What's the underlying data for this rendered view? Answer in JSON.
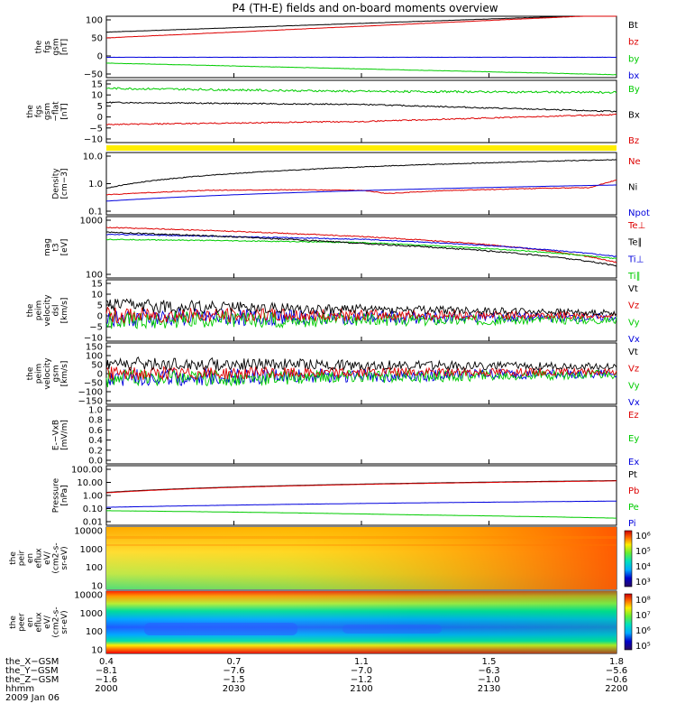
{
  "title": "P4 (TH-E) fields and on-board moments overview",
  "colors": {
    "black": "#000000",
    "red": "#dd0000",
    "green": "#00cc00",
    "blue": "#0000dd",
    "yellow": "#ffee00"
  },
  "chart_data": [
    {
      "type": "line",
      "ylabel": [
        "the",
        "fgs",
        "gsm",
        "[nT]"
      ],
      "yticks": [
        "100",
        "50",
        "0",
        "−50"
      ],
      "ylim": [
        -85,
        105
      ],
      "legend": [
        {
          "name": "Bt",
          "color": "#000000"
        },
        {
          "name": "bz",
          "color": "#dd0000"
        },
        {
          "name": "by",
          "color": "#00cc00"
        },
        {
          "name": "bx",
          "color": "#0000dd"
        }
      ],
      "series": [
        {
          "name": "Bt",
          "color": "#000000",
          "x": [
            0,
            1
          ],
          "y": [
            56,
            110
          ],
          "noise": 0.4
        },
        {
          "name": "bz",
          "color": "#dd0000",
          "x": [
            0,
            1
          ],
          "y": [
            38,
            110
          ],
          "noise": 0.4
        },
        {
          "name": "bx",
          "color": "#0000dd",
          "x": [
            0,
            1
          ],
          "y": [
            -22,
            -22
          ],
          "noise": 0.3
        },
        {
          "name": "by",
          "color": "#00cc00",
          "x": [
            0,
            1
          ],
          "y": [
            -40,
            -76
          ],
          "noise": 0.5
        }
      ]
    },
    {
      "type": "line",
      "ylabel": [
        "the",
        "fgs",
        "gsm",
        "−flat",
        "[nT]"
      ],
      "yticks": [
        "15",
        "10",
        "5",
        "0",
        "−5",
        "−10"
      ],
      "ylim": [
        -15,
        16
      ],
      "legend": [
        {
          "name": "By",
          "color": "#00cc00"
        },
        {
          "name": "Bx",
          "color": "#000000"
        },
        {
          "name": "Bz",
          "color": "#dd0000"
        }
      ],
      "series": [
        {
          "name": "By",
          "color": "#00cc00",
          "x": [
            0,
            0.5,
            1
          ],
          "y": [
            12,
            10.5,
            10
          ],
          "noise": 0.5
        },
        {
          "name": "Bx",
          "color": "#000000",
          "x": [
            0,
            0.5,
            1
          ],
          "y": [
            5,
            4,
            0.5
          ],
          "noise": 0.3
        },
        {
          "name": "Bz",
          "color": "#dd0000",
          "x": [
            0,
            0.5,
            1
          ],
          "y": [
            -6,
            -4.5,
            -1
          ],
          "noise": 0.3
        }
      ]
    },
    {
      "type": "line",
      "ylabel": [
        "Density",
        "[cm−3]"
      ],
      "yticks": [
        "10.0",
        "1.0",
        "0.1"
      ],
      "ylim": [
        0.1,
        15
      ],
      "log": true,
      "legend": [
        {
          "name": "Ne",
          "color": "#dd0000"
        },
        {
          "name": "Ni",
          "color": "#000000"
        },
        {
          "name": "Npot",
          "color": "#0000dd"
        }
      ],
      "series": [
        {
          "name": "Ni",
          "color": "#000000",
          "x": [
            0,
            1
          ],
          "y": [
            0.85,
            8.5
          ],
          "noise": 0.03
        },
        {
          "name": "Ne",
          "color": "#dd0000",
          "x": [
            0,
            0.2,
            0.35,
            0.5,
            0.55,
            0.65,
            0.8,
            0.95,
            1
          ],
          "y": [
            0.5,
            0.72,
            0.75,
            0.72,
            0.55,
            0.68,
            0.8,
            0.9,
            1.6
          ],
          "noise": 0.03
        },
        {
          "name": "Npot",
          "color": "#0000dd",
          "x": [
            0,
            1
          ],
          "y": [
            0.3,
            1.1
          ],
          "noise": 0.0
        }
      ]
    },
    {
      "type": "line",
      "ylabel": [
        "mag",
        "t3",
        "[eV]"
      ],
      "yticks": [
        "1000",
        "100"
      ],
      "ylim": [
        100,
        4500
      ],
      "log": true,
      "legend": [
        {
          "name": "Te⊥",
          "color": "#dd0000"
        },
        {
          "name": "Te∥",
          "color": "#000000"
        },
        {
          "name": "Ti⊥",
          "color": "#0000dd"
        },
        {
          "name": "Ti∥",
          "color": "#00cc00"
        }
      ],
      "series": [
        {
          "name": "Te⊥",
          "color": "#dd0000",
          "x": [
            0,
            0.5,
            1
          ],
          "y": [
            2300,
            1300,
            260
          ],
          "noise": 0.03
        },
        {
          "name": "Ti⊥",
          "color": "#0000dd",
          "x": [
            0,
            0.5,
            1
          ],
          "y": [
            1500,
            1100,
            380
          ],
          "noise": 0.03
        },
        {
          "name": "Ti∥",
          "color": "#00cc00",
          "x": [
            0,
            0.5,
            1
          ],
          "y": [
            1100,
            900,
            330
          ],
          "noise": 0.03
        },
        {
          "name": "Te∥",
          "color": "#000000",
          "x": [
            0,
            0.5,
            1
          ],
          "y": [
            1700,
            850,
            210
          ],
          "noise": 0.04
        }
      ]
    },
    {
      "type": "line",
      "ylabel": [
        "the",
        "peim",
        "velocity",
        "dsl",
        "[km/s]"
      ],
      "yticks": [
        "15",
        "10",
        "5",
        "0",
        "−5",
        "−10"
      ],
      "ylim": [
        -10,
        16
      ],
      "legend": [
        {
          "name": "Vt",
          "color": "#000000"
        },
        {
          "name": "Vz",
          "color": "#dd0000"
        },
        {
          "name": "Vy",
          "color": "#00cc00"
        },
        {
          "name": "Vx",
          "color": "#0000dd"
        }
      ],
      "series": [
        {
          "name": "Vx",
          "color": "#0000dd",
          "x": [
            0,
            1
          ],
          "y": [
            0,
            0
          ],
          "noise": 4.0,
          "decay": 0.6
        },
        {
          "name": "Vy",
          "color": "#00cc00",
          "x": [
            0,
            1
          ],
          "y": [
            -1,
            -1
          ],
          "noise": 4.0,
          "decay": 0.6
        },
        {
          "name": "Vz",
          "color": "#dd0000",
          "x": [
            0,
            1
          ],
          "y": [
            1,
            1
          ],
          "noise": 3.5,
          "decay": 0.6
        },
        {
          "name": "Vt",
          "color": "#000000",
          "x": [
            0,
            1
          ],
          "y": [
            5,
            2
          ],
          "noise": 3.0,
          "decay": 0.6
        }
      ]
    },
    {
      "type": "line",
      "ylabel": [
        "the",
        "peim",
        "velocity",
        "gsm",
        "[km/s]"
      ],
      "yticks": [
        "150",
        "100",
        "50",
        "0",
        "−50",
        "−100",
        "−150"
      ],
      "ylim": [
        -150,
        150
      ],
      "legend": [
        {
          "name": "Vt",
          "color": "#000000"
        },
        {
          "name": "Vz",
          "color": "#dd0000"
        },
        {
          "name": "Vy",
          "color": "#00cc00"
        },
        {
          "name": "Vx",
          "color": "#0000dd"
        }
      ],
      "series": [
        {
          "name": "Vx",
          "color": "#0000dd",
          "x": [
            0,
            1
          ],
          "y": [
            -20,
            0
          ],
          "noise": 45,
          "decay": 0.55
        },
        {
          "name": "Vy",
          "color": "#00cc00",
          "x": [
            0,
            1
          ],
          "y": [
            -25,
            -5
          ],
          "noise": 45,
          "decay": 0.55
        },
        {
          "name": "Vz",
          "color": "#dd0000",
          "x": [
            0,
            1
          ],
          "y": [
            0,
            10
          ],
          "noise": 35,
          "decay": 0.55
        },
        {
          "name": "Vt",
          "color": "#000000",
          "x": [
            0,
            1
          ],
          "y": [
            50,
            35
          ],
          "noise": 35,
          "decay": 0.55
        }
      ]
    },
    {
      "type": "line",
      "ylabel": [
        "E-−VxB",
        "[mV/m]"
      ],
      "yticks": [
        "1.0",
        "0.8",
        "0.6",
        "0.4",
        "0.2",
        "0.0"
      ],
      "ylim": [
        0,
        1
      ],
      "legend": [
        {
          "name": "Ez",
          "color": "#dd0000"
        },
        {
          "name": "Ey",
          "color": "#00cc00"
        },
        {
          "name": "Ex",
          "color": "#0000dd"
        }
      ],
      "series": []
    },
    {
      "type": "line",
      "ylabel": [
        "Pressure",
        "[nPa]"
      ],
      "yticks": [
        "100.00",
        "10.00",
        "1.00",
        "0.10",
        "0.01"
      ],
      "ylim": [
        0.01,
        100
      ],
      "log": true,
      "legend": [
        {
          "name": "Pt",
          "color": "#000000"
        },
        {
          "name": "Pb",
          "color": "#dd0000"
        },
        {
          "name": "Pe",
          "color": "#00cc00"
        },
        {
          "name": "Pi",
          "color": "#0000dd"
        }
      ],
      "series": [
        {
          "name": "Pt",
          "color": "#000000",
          "x": [
            0,
            1
          ],
          "y": [
            1.6,
            10
          ],
          "noise": 0.0
        },
        {
          "name": "Pb",
          "color": "#dd0000",
          "x": [
            0,
            1
          ],
          "y": [
            1.5,
            9.5
          ],
          "noise": 0.01
        },
        {
          "name": "Pi",
          "color": "#0000dd",
          "x": [
            0,
            1
          ],
          "y": [
            0.16,
            0.42
          ],
          "noise": 0.01
        },
        {
          "name": "Pe",
          "color": "#00cc00",
          "x": [
            0,
            0.6,
            1
          ],
          "y": [
            0.095,
            0.05,
            0.03
          ],
          "noise": 0.01
        }
      ]
    },
    {
      "type": "heatmap",
      "ylabel": [
        "the",
        "peir",
        "en",
        "eflux",
        "eV/",
        "(cm2-s-",
        "sr-eV)"
      ],
      "yticks": [
        "10000",
        "1000",
        "100",
        "10"
      ],
      "colorbar_ticks": [
        "10⁶",
        "10⁵",
        "10⁴",
        "10³"
      ]
    },
    {
      "type": "heatmap",
      "ylabel": [
        "the",
        "peer",
        "en",
        "eflux",
        "eV/",
        "(cm2-s-",
        "sr-eV)"
      ],
      "yticks": [
        "10000",
        "1000",
        "100",
        "10"
      ],
      "colorbar_ticks": [
        "10⁸",
        "10⁷",
        "10⁶",
        "10⁵"
      ]
    }
  ],
  "xaxis": {
    "rows": [
      {
        "label": "the_X−GSM",
        "values": [
          "0.4",
          "0.7",
          "1.1",
          "1.5",
          "1.8"
        ]
      },
      {
        "label": "the_Y−GSM",
        "values": [
          "−8.1",
          "−7.6",
          "−7.0",
          "−6.3",
          "−5.6"
        ]
      },
      {
        "label": "the_Z−GSM",
        "values": [
          "−1.6",
          "−1.5",
          "−1.2",
          "−1.0",
          "−0.6"
        ]
      },
      {
        "label": "hhmm",
        "values": [
          "2000",
          "2030",
          "2100",
          "2130",
          "2200"
        ]
      }
    ],
    "date": "2009 Jan 06"
  }
}
